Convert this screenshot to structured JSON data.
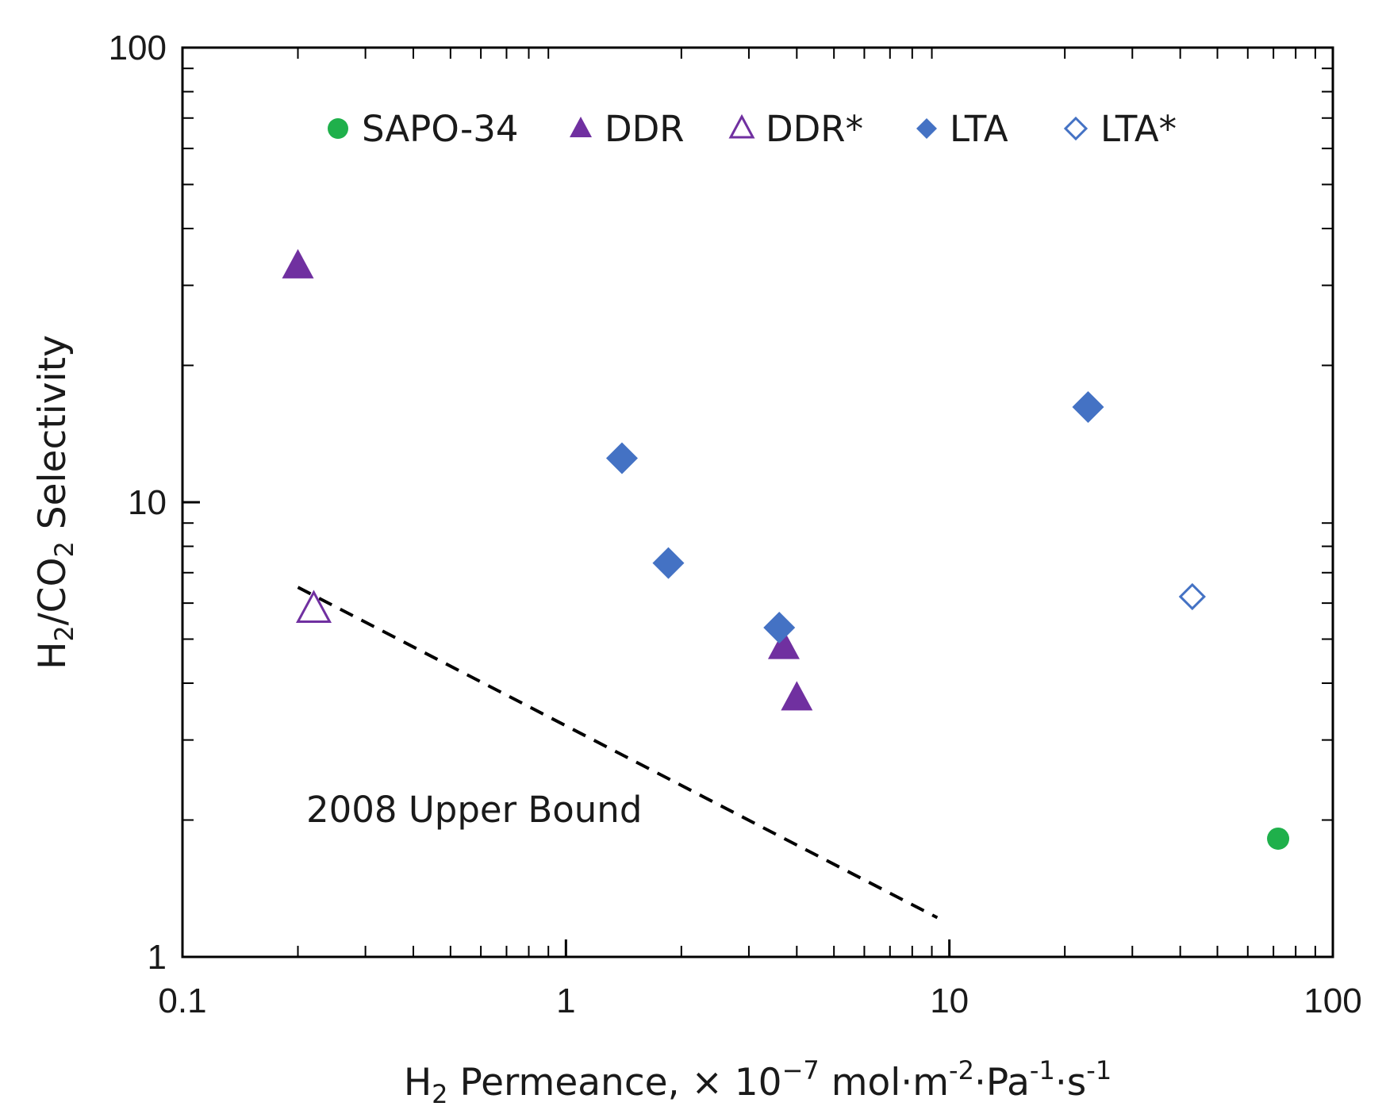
{
  "chart_data": {
    "type": "scatter",
    "xscale": "log",
    "yscale": "log",
    "xlim": [
      0.1,
      100
    ],
    "ylim": [
      1,
      100
    ],
    "x_ticks": [
      "0.1",
      "1",
      "10",
      "100"
    ],
    "y_ticks": [
      "1",
      "10",
      "100"
    ],
    "xlabel": {
      "main": "H",
      "sub": "2",
      "rest": " Permeance, × 10",
      "exp1": "−7",
      "unit1": " mol·m",
      "exp2": "-2",
      "unit2": "·Pa",
      "exp3": "-1",
      "unit3": "·s",
      "exp4": "-1"
    },
    "ylabel": {
      "a": "H",
      "sub1": "2",
      "b": "/CO",
      "sub2": "2",
      "c": " Selectivity"
    },
    "grid": false,
    "legend_position": "top",
    "series": [
      {
        "name": "SAPO-34",
        "marker": "circle",
        "filled": true,
        "color": "#1fb04b",
        "points": [
          [
            72,
            1.82
          ]
        ]
      },
      {
        "name": "DDR",
        "marker": "triangle",
        "filled": true,
        "color": "#7030a0",
        "points": [
          [
            0.2,
            33
          ],
          [
            3.7,
            4.8
          ],
          [
            4.0,
            3.7
          ]
        ]
      },
      {
        "name": "DDR*",
        "marker": "triangle",
        "filled": false,
        "color": "#7030a0",
        "points": [
          [
            0.22,
            5.8
          ]
        ]
      },
      {
        "name": "LTA",
        "marker": "diamond",
        "filled": true,
        "color": "#4472c4",
        "points": [
          [
            1.4,
            12.5
          ],
          [
            1.85,
            7.35
          ],
          [
            3.6,
            5.3
          ],
          [
            23,
            16.2
          ]
        ]
      },
      {
        "name": "LTA*",
        "marker": "diamond",
        "filled": false,
        "color": "#4472c4",
        "points": [
          [
            43,
            6.2
          ]
        ]
      }
    ],
    "upper_bound": {
      "label": "2008 Upper Bound",
      "points": [
        [
          0.2,
          6.5
        ],
        [
          9.3,
          1.22
        ]
      ],
      "style": "dashed",
      "color": "#000000"
    }
  }
}
